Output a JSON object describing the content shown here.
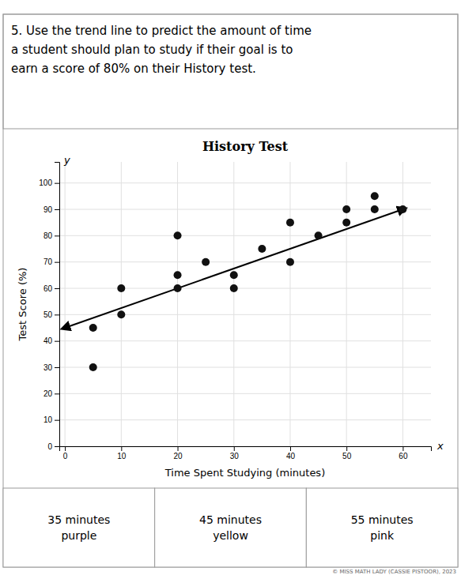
{
  "chart_data": {
    "type": "scatter",
    "title": "History Test",
    "xlabel": "Time Spent Studying (minutes)",
    "ylabel": "Test Score (%)",
    "x": [
      5,
      5,
      10,
      10,
      20,
      20,
      20,
      25,
      30,
      30,
      35,
      40,
      40,
      45,
      50,
      50,
      55,
      55,
      60
    ],
    "values": [
      45,
      30,
      60,
      50,
      80,
      60,
      65,
      70,
      65,
      60,
      75,
      85,
      70,
      80,
      90,
      85,
      90,
      95,
      90
    ],
    "color": "#111111",
    "trend_line": {
      "x": [
        0,
        60
      ],
      "values": [
        45,
        90
      ],
      "color": "#000000"
    },
    "xlim": [
      -1,
      65
    ],
    "ylim": [
      0,
      108
    ],
    "xticks": [
      0,
      10,
      20,
      30,
      40,
      50,
      60
    ],
    "yticks": [
      0,
      10,
      20,
      30,
      40,
      50,
      60,
      70,
      80,
      90,
      100
    ],
    "grid": true,
    "annotations": [
      "x",
      "y"
    ],
    "question": "5. Use the trend line to predict the amount of time\na student should plan to study if their goal is to\nearn a score of 80% on their History test.",
    "answers": [
      "35 minutes\npurple",
      "45 minutes\nyellow",
      "55 minutes\npink"
    ],
    "copyright": "© MISS MATH LADY (CASSIE PISTOOR), 2023"
  }
}
